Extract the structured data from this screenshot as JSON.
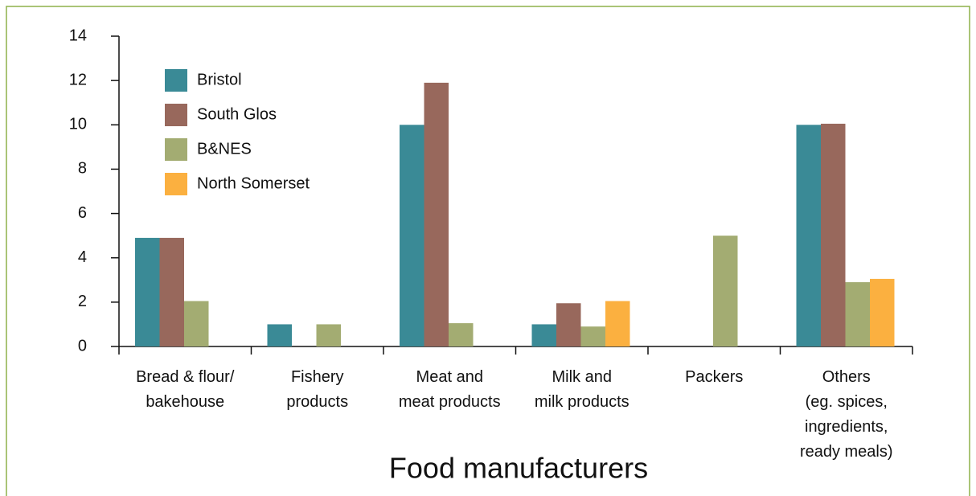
{
  "chart_data": {
    "type": "bar",
    "title": "Food manufacturers",
    "categories": [
      "Bread & flour/\nbakehouse",
      "Fishery\nproducts",
      "Meat and\nmeat products",
      "Milk and\nmilk products",
      "Packers",
      "Others\n(eg. spices,\ningredients,\nready meals)"
    ],
    "series": [
      {
        "name": "Bristol",
        "color": "#3a8a96",
        "values": [
          4.9,
          1,
          10,
          1,
          null,
          10
        ]
      },
      {
        "name": "South Glos",
        "color": "#98685c",
        "values": [
          4.9,
          null,
          11.9,
          1.95,
          null,
          10.05
        ]
      },
      {
        "name": "B&NES",
        "color": "#a3ac72",
        "values": [
          2.05,
          1,
          1.05,
          0.9,
          5,
          2.9
        ]
      },
      {
        "name": "North Somerset",
        "color": "#fbb040",
        "values": [
          null,
          null,
          null,
          2.05,
          null,
          3.05
        ]
      }
    ],
    "ylim": [
      0,
      14
    ],
    "yticks": [
      0,
      2,
      4,
      6,
      8,
      10,
      12,
      14
    ],
    "legend": "upper left"
  }
}
